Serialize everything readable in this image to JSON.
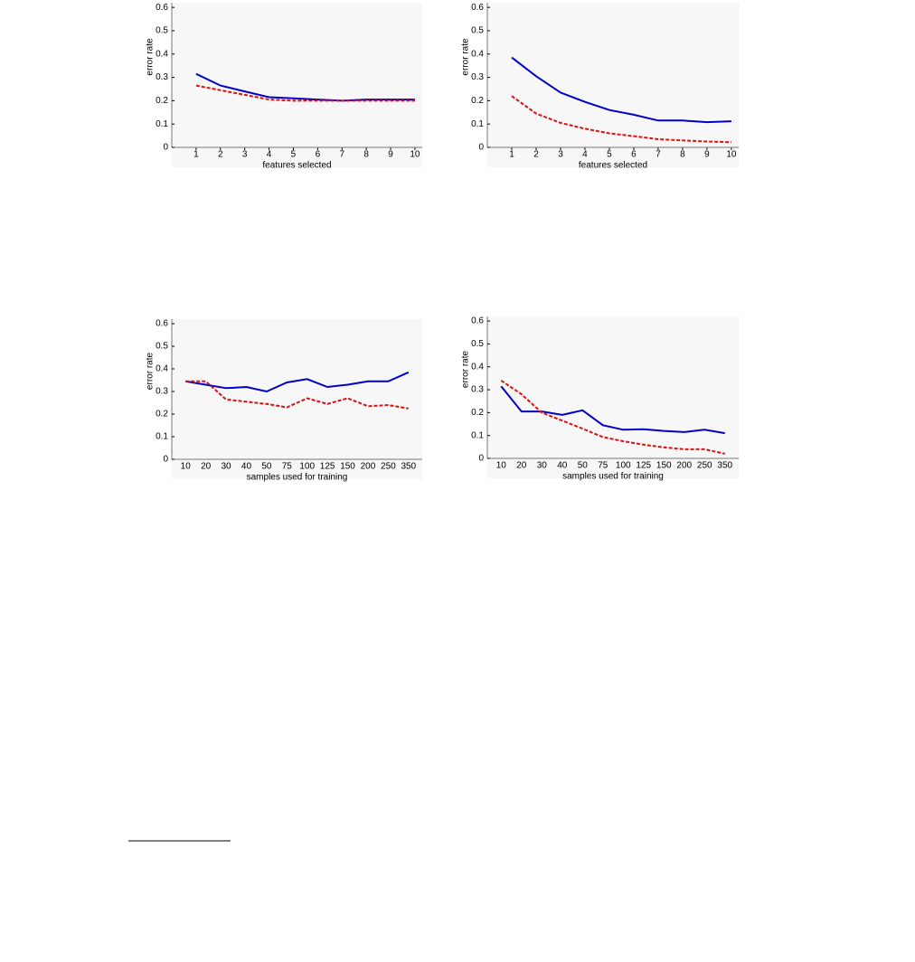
{
  "chart_data": [
    {
      "type": "line",
      "x": [
        1,
        2,
        3,
        4,
        5,
        6,
        7,
        8,
        9,
        10
      ],
      "xlim": [
        0,
        10.3
      ],
      "xticks": [
        1,
        2,
        3,
        4,
        5,
        6,
        7,
        8,
        9,
        10
      ],
      "xlabel": "features selected",
      "ylabel": "error rate",
      "ylim": [
        0,
        0.62
      ],
      "yticks": [
        0,
        0.1,
        0.2,
        0.3,
        0.4,
        0.5,
        0.6
      ],
      "series": [
        {
          "color": "#0000cc",
          "style": "solid",
          "values": [
            0.315,
            0.265,
            0.24,
            0.215,
            0.21,
            0.205,
            0.2,
            0.205,
            0.205,
            0.205
          ]
        },
        {
          "color": "#dd1111",
          "style": "dashed",
          "values": [
            0.265,
            0.245,
            0.225,
            0.205,
            0.2,
            0.2,
            0.2,
            0.2,
            0.2,
            0.2
          ]
        }
      ]
    },
    {
      "type": "line",
      "x": [
        1,
        2,
        3,
        4,
        5,
        6,
        7,
        8,
        9,
        10
      ],
      "xlim": [
        0,
        10.3
      ],
      "xticks": [
        1,
        2,
        3,
        4,
        5,
        6,
        7,
        8,
        9,
        10
      ],
      "xlabel": "features selected",
      "ylabel": "error rate",
      "ylim": [
        0,
        0.62
      ],
      "yticks": [
        0,
        0.1,
        0.2,
        0.3,
        0.4,
        0.5,
        0.6
      ],
      "series": [
        {
          "color": "#0000cc",
          "style": "solid",
          "values": [
            0.385,
            0.305,
            0.235,
            0.195,
            0.16,
            0.14,
            0.115,
            0.115,
            0.108,
            0.112
          ]
        },
        {
          "color": "#dd1111",
          "style": "dashed",
          "values": [
            0.22,
            0.145,
            0.105,
            0.08,
            0.06,
            0.048,
            0.035,
            0.03,
            0.025,
            0.022
          ]
        }
      ]
    },
    {
      "type": "line",
      "categories": [
        "10",
        "20",
        "30",
        "40",
        "50",
        "75",
        "100",
        "125",
        "150",
        "200",
        "250",
        "350"
      ],
      "xlabel": "samples used for training",
      "ylabel": "error rate",
      "ylim": [
        0,
        0.62
      ],
      "yticks": [
        0,
        0.1,
        0.2,
        0.3,
        0.4,
        0.5,
        0.6
      ],
      "series": [
        {
          "color": "#0000cc",
          "style": "solid",
          "values": [
            0.345,
            0.33,
            0.315,
            0.32,
            0.3,
            0.34,
            0.355,
            0.32,
            0.33,
            0.345,
            0.345,
            0.385
          ]
        },
        {
          "color": "#dd1111",
          "style": "dashed",
          "values": [
            0.345,
            0.345,
            0.265,
            0.255,
            0.245,
            0.23,
            0.27,
            0.245,
            0.27,
            0.235,
            0.24,
            0.225
          ]
        }
      ]
    },
    {
      "type": "line",
      "categories": [
        "10",
        "20",
        "30",
        "40",
        "50",
        "75",
        "100",
        "125",
        "150",
        "200",
        "250",
        "350"
      ],
      "xlabel": "samples used for training",
      "ylabel": "error rate",
      "ylim": [
        0,
        0.62
      ],
      "yticks": [
        0,
        0.1,
        0.2,
        0.3,
        0.4,
        0.5,
        0.6
      ],
      "series": [
        {
          "color": "#0000cc",
          "style": "solid",
          "values": [
            0.315,
            0.205,
            0.205,
            0.19,
            0.21,
            0.145,
            0.125,
            0.127,
            0.12,
            0.115,
            0.125,
            0.11
          ]
        },
        {
          "color": "#dd1111",
          "style": "dashed",
          "values": [
            0.34,
            0.28,
            0.2,
            0.165,
            0.13,
            0.093,
            0.075,
            0.06,
            0.048,
            0.04,
            0.04,
            0.02
          ]
        }
      ]
    }
  ]
}
